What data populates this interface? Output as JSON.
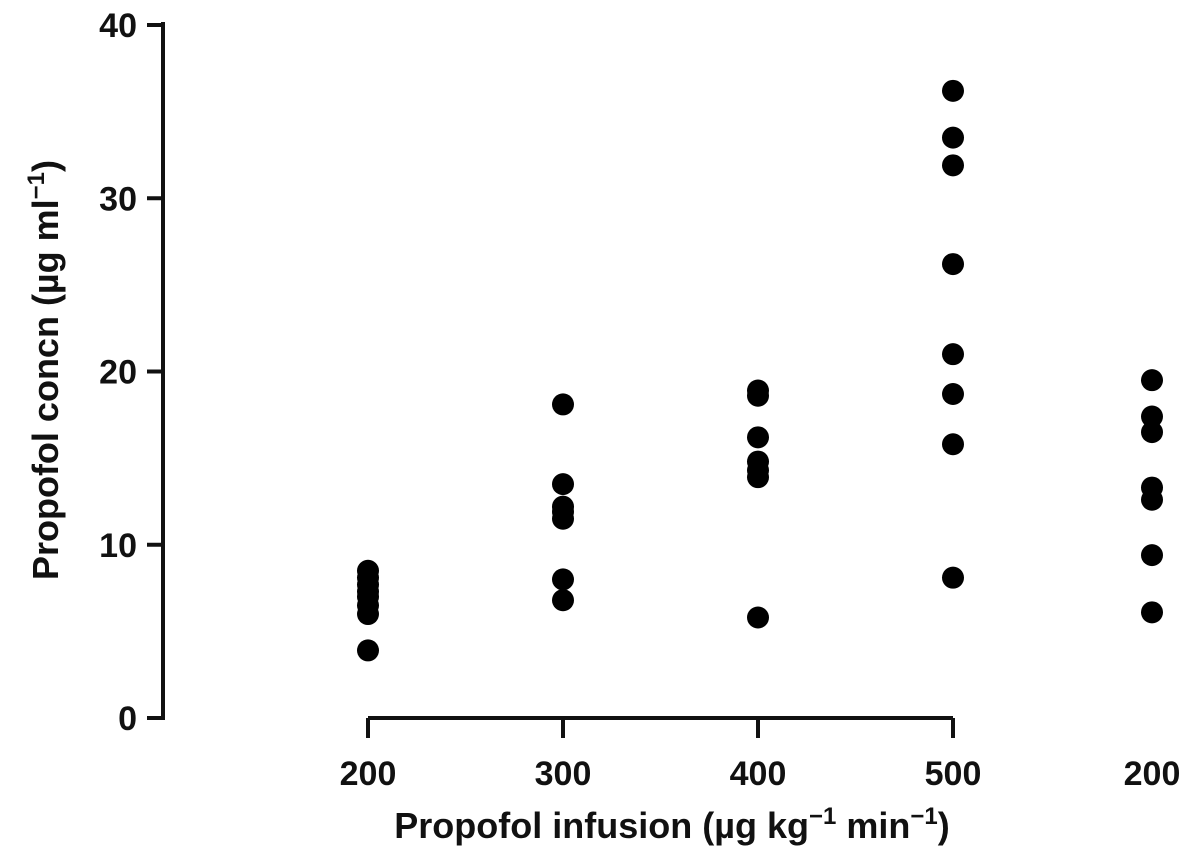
{
  "chart_data": {
    "type": "scatter",
    "xlabel": {
      "text": "Propofol infusion (µg kg",
      "sup1": "−1",
      "mid": " min",
      "sup2": "−1",
      "end": ")"
    },
    "ylabel": {
      "text": "Propofol concn (µg ml",
      "sup": "−1",
      "end": ")"
    },
    "ylim": [
      0,
      40
    ],
    "yticks": [
      "0",
      "10",
      "20",
      "30",
      "40"
    ],
    "categories": [
      "200",
      "300",
      "400",
      "500",
      "200"
    ],
    "groups": [
      [
        3.9,
        6.0,
        6.5,
        7.0,
        7.3,
        7.7,
        8.1,
        8.5
      ],
      [
        6.8,
        8.0,
        11.5,
        11.9,
        12.2,
        13.5,
        18.1
      ],
      [
        5.8,
        13.9,
        14.3,
        14.8,
        16.2,
        18.6,
        18.9
      ],
      [
        8.1,
        15.8,
        18.7,
        21.0,
        26.2,
        31.9,
        33.5,
        36.2
      ],
      [
        6.1,
        9.4,
        12.6,
        13.3,
        16.5,
        17.4,
        19.5
      ]
    ],
    "grid": false,
    "color": "#000000"
  }
}
